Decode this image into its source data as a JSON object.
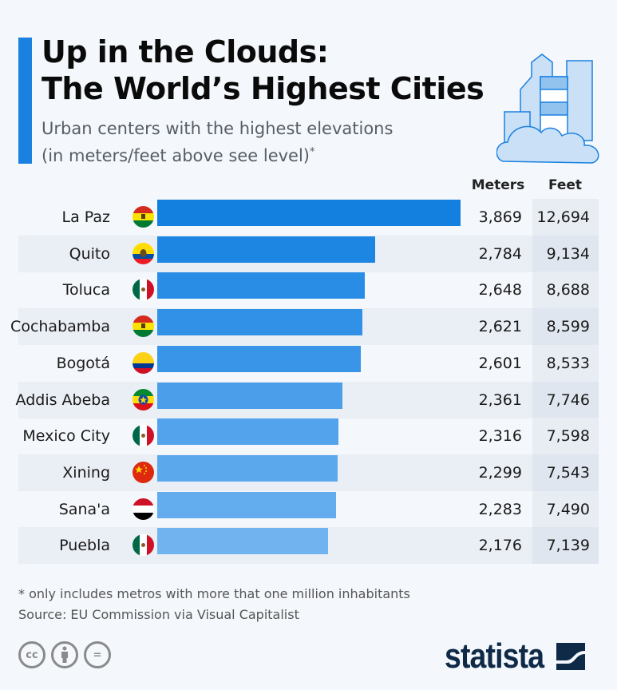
{
  "header": {
    "title_line1": "Up in the Clouds:",
    "title_line2": "The World’s Highest Cities",
    "subtitle_line1": "Urban centers with the highest elevations",
    "subtitle_line2": "(in meters/feet above see level)",
    "subtitle_mark": "*",
    "illustration": "city-cloud-icon"
  },
  "columns": {
    "meters": "Meters",
    "feet": "Feet"
  },
  "chart_data": {
    "type": "bar",
    "orientation": "horizontal",
    "title": "Up in the Clouds: The World’s Highest Cities",
    "subtitle": "Urban centers with the highest elevations (in meters/feet above see level)*",
    "categories": [
      "La Paz",
      "Quito",
      "Toluca",
      "Cochabamba",
      "Bogotá",
      "Addis Abeba",
      "Mexico City",
      "Xining",
      "Sana'a",
      "Puebla"
    ],
    "series": [
      {
        "name": "Meters",
        "values": [
          3869,
          2784,
          2648,
          2621,
          2601,
          2361,
          2316,
          2299,
          2283,
          2176
        ]
      },
      {
        "name": "Feet",
        "values": [
          12694,
          9134,
          8688,
          8599,
          8533,
          7746,
          7598,
          7543,
          7490,
          7139
        ]
      }
    ],
    "labels_meters": [
      "3,869",
      "2,784",
      "2,648",
      "2,621",
      "2,601",
      "2,361",
      "2,316",
      "2,299",
      "2,283",
      "2,176"
    ],
    "labels_feet": [
      "12,694",
      "9,134",
      "8,688",
      "8,599",
      "8,533",
      "7,746",
      "7,598",
      "7,543",
      "7,490",
      "7,139"
    ],
    "flags": [
      "bolivia",
      "ecuador",
      "mexico",
      "bolivia",
      "colombia",
      "ethiopia",
      "mexico",
      "china",
      "yemen",
      "mexico"
    ],
    "bar_colors": [
      "#1380e0",
      "#1d86e3",
      "#2a8de5",
      "#3091e6",
      "#3895e7",
      "#4a9eea",
      "#52a3eb",
      "#5ba8ec",
      "#63acee",
      "#70b3ef"
    ],
    "xlabel": "",
    "ylabel": "",
    "xlim": [
      0,
      3869
    ],
    "grid": false,
    "legend": "none"
  },
  "footer": {
    "note": "* only includes metros with more that one million inhabitants",
    "source": "Source: EU Commission via Visual Capitalist",
    "license_icons": [
      "cc-icon",
      "attribution-icon",
      "no-derivatives-icon"
    ],
    "cc_text": "cc",
    "nd_text": "=",
    "brand": "statista"
  }
}
